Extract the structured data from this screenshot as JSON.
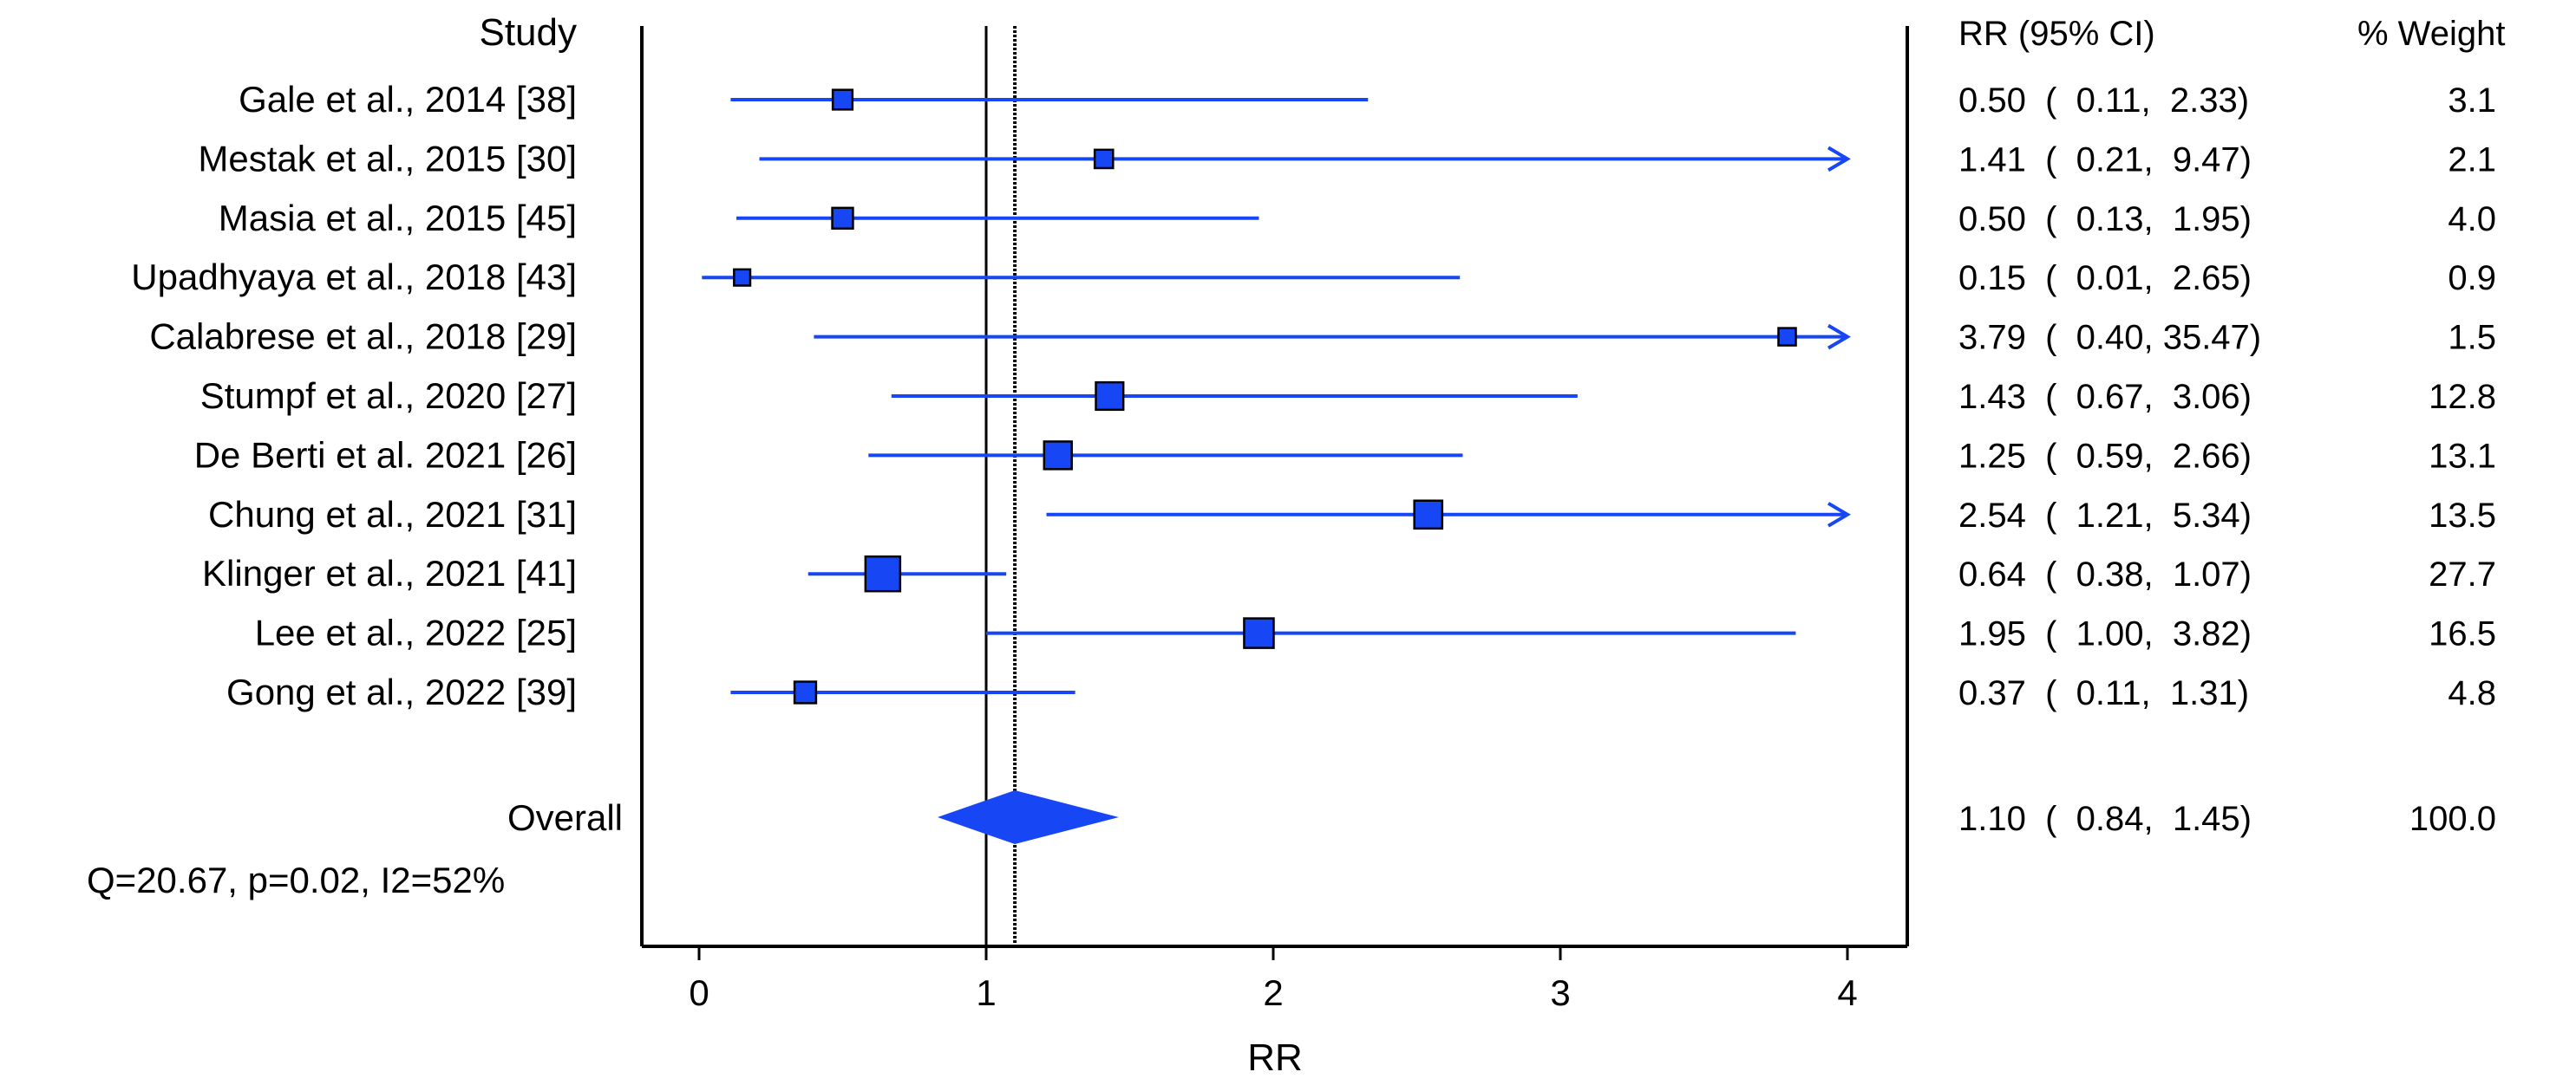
{
  "chart_data": {
    "type": "forest",
    "xlabel": "RR",
    "xlim": [
      0,
      4
    ],
    "xticks": [
      0,
      1,
      2,
      3,
      4
    ],
    "reference_line": 1,
    "overall_line": 1.1,
    "headers": {
      "study": "Study",
      "ci": "RR (95% CI)",
      "weight": "% Weight"
    },
    "studies": [
      {
        "label": "Gale et al., 2014 [38]",
        "rr": 0.5,
        "lower": 0.11,
        "upper": 2.33,
        "ci_text": "0.50  (  0.11,  2.33)",
        "weight": "3.1",
        "weight_value": 3.1
      },
      {
        "label": "Mestak et al., 2015 [30]",
        "rr": 1.41,
        "lower": 0.21,
        "upper": 9.47,
        "ci_text": "1.41  (  0.21,  9.47)",
        "weight": "2.1",
        "weight_value": 2.1
      },
      {
        "label": "Masia et al., 2015 [45]",
        "rr": 0.5,
        "lower": 0.13,
        "upper": 1.95,
        "ci_text": "0.50  (  0.13,  1.95)",
        "weight": "4.0",
        "weight_value": 4.0
      },
      {
        "label": "Upadhyaya et al., 2018 [43]",
        "rr": 0.15,
        "lower": 0.01,
        "upper": 2.65,
        "ci_text": "0.15  (  0.01,  2.65)",
        "weight": "0.9",
        "weight_value": 0.9
      },
      {
        "label": "Calabrese et al., 2018 [29]",
        "rr": 3.79,
        "lower": 0.4,
        "upper": 35.47,
        "ci_text": "3.79  (  0.40, 35.47)",
        "weight": "1.5",
        "weight_value": 1.5
      },
      {
        "label": "Stumpf et al., 2020 [27]",
        "rr": 1.43,
        "lower": 0.67,
        "upper": 3.06,
        "ci_text": "1.43  (  0.67,  3.06)",
        "weight": "12.8",
        "weight_value": 12.8
      },
      {
        "label": "De Berti et al. 2021 [26]",
        "rr": 1.25,
        "lower": 0.59,
        "upper": 2.66,
        "ci_text": "1.25  (  0.59,  2.66)",
        "weight": "13.1",
        "weight_value": 13.1
      },
      {
        "label": "Chung et al., 2021 [31]",
        "rr": 2.54,
        "lower": 1.21,
        "upper": 5.34,
        "ci_text": "2.54  (  1.21,  5.34)",
        "weight": "13.5",
        "weight_value": 13.5
      },
      {
        "label": "Klinger et al., 2021 [41]",
        "rr": 0.64,
        "lower": 0.38,
        "upper": 1.07,
        "ci_text": "0.64  (  0.38,  1.07)",
        "weight": "27.7",
        "weight_value": 27.7
      },
      {
        "label": "Lee et al., 2022 [25]",
        "rr": 1.95,
        "lower": 1.0,
        "upper": 3.82,
        "ci_text": "1.95  (  1.00,  3.82)",
        "weight": "16.5",
        "weight_value": 16.5
      },
      {
        "label": "Gong et al., 2022 [39]",
        "rr": 0.37,
        "lower": 0.11,
        "upper": 1.31,
        "ci_text": "0.37  (  0.11,  1.31)",
        "weight": "4.8",
        "weight_value": 4.8
      }
    ],
    "overall": {
      "label": "Overall",
      "rr": 1.1,
      "lower": 0.84,
      "upper": 1.45,
      "ci_text": "1.10  (  0.84,  1.45)",
      "weight": "100.0"
    },
    "heterogeneity": "Q=20.67, p=0.02, I2=52%",
    "colors": {
      "marker": "#1747f5",
      "marker_border": "#000000",
      "ci_line": "#1747f5",
      "axis": "#000000",
      "reference": "#000000"
    }
  }
}
